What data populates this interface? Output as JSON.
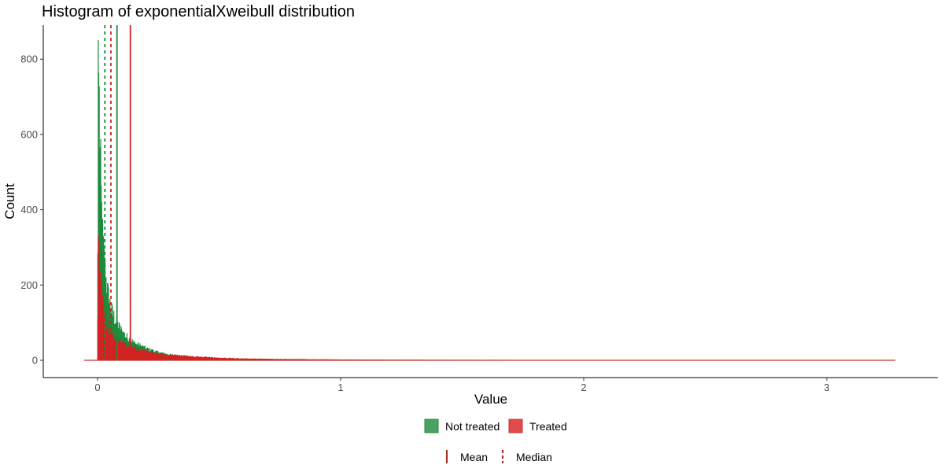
{
  "chart_data": {
    "type": "histogram",
    "title": "Histogram of exponentialXweibull distribution",
    "xlabel": "Value",
    "ylabel": "Count",
    "xlim": [
      -0.1,
      3.3
    ],
    "ylim": [
      -45,
      890
    ],
    "x_ticks": [
      0,
      1,
      2,
      3
    ],
    "y_ticks": [
      0,
      200,
      400,
      600,
      800
    ],
    "grid": false,
    "bin_width": 0.002,
    "series": [
      {
        "name": "Not treated",
        "color": "#1e8a3c",
        "peak_x": 0.003,
        "profile_x": [
          0,
          0.003,
          0.006,
          0.01,
          0.015,
          0.02,
          0.03,
          0.04,
          0.05,
          0.06,
          0.08,
          0.1,
          0.12,
          0.15,
          0.2,
          0.25,
          0.3,
          0.4,
          0.5,
          0.6,
          0.8,
          1.0,
          1.5,
          2.0,
          2.5,
          3.0,
          3.28
        ],
        "profile_y": [
          0,
          850,
          720,
          560,
          430,
          330,
          240,
          185,
          150,
          125,
          95,
          75,
          60,
          45,
          30,
          20,
          14,
          8,
          4,
          2.5,
          1.2,
          0.6,
          0.2,
          0.1,
          0.05,
          0.02,
          0
        ],
        "mean": 0.08,
        "median": 0.03
      },
      {
        "name": "Treated",
        "color": "#d22222",
        "peak_x": 0.003,
        "profile_x": [
          0,
          0.003,
          0.006,
          0.01,
          0.015,
          0.02,
          0.03,
          0.04,
          0.05,
          0.06,
          0.08,
          0.1,
          0.12,
          0.15,
          0.2,
          0.25,
          0.3,
          0.4,
          0.5,
          0.6,
          0.8,
          1.0,
          1.5,
          2.0,
          2.5,
          3.0,
          3.28
        ],
        "profile_y": [
          0,
          330,
          290,
          230,
          180,
          145,
          110,
          90,
          75,
          63,
          50,
          42,
          36,
          30,
          22,
          17,
          13,
          9,
          6,
          4,
          2.5,
          1.5,
          0.6,
          0.3,
          0.15,
          0.08,
          0
        ],
        "mean": 0.135,
        "median": 0.055
      }
    ],
    "baseline": {
      "from": -0.055,
      "to": 3.28,
      "color": "#c0392b"
    },
    "legend_fill": {
      "position": "bottom",
      "items": [
        {
          "label": "Not treated",
          "color": "#4aa364",
          "border": "#1e8a3c"
        },
        {
          "label": "Treated",
          "color": "#e04b4b",
          "border": "#c0392b"
        }
      ]
    },
    "legend_lines": {
      "position": "bottom",
      "items": [
        {
          "label": "Mean",
          "style": "solid",
          "color": "#a93226"
        },
        {
          "label": "Median",
          "style": "dashed",
          "color": "#a93226"
        }
      ]
    }
  }
}
